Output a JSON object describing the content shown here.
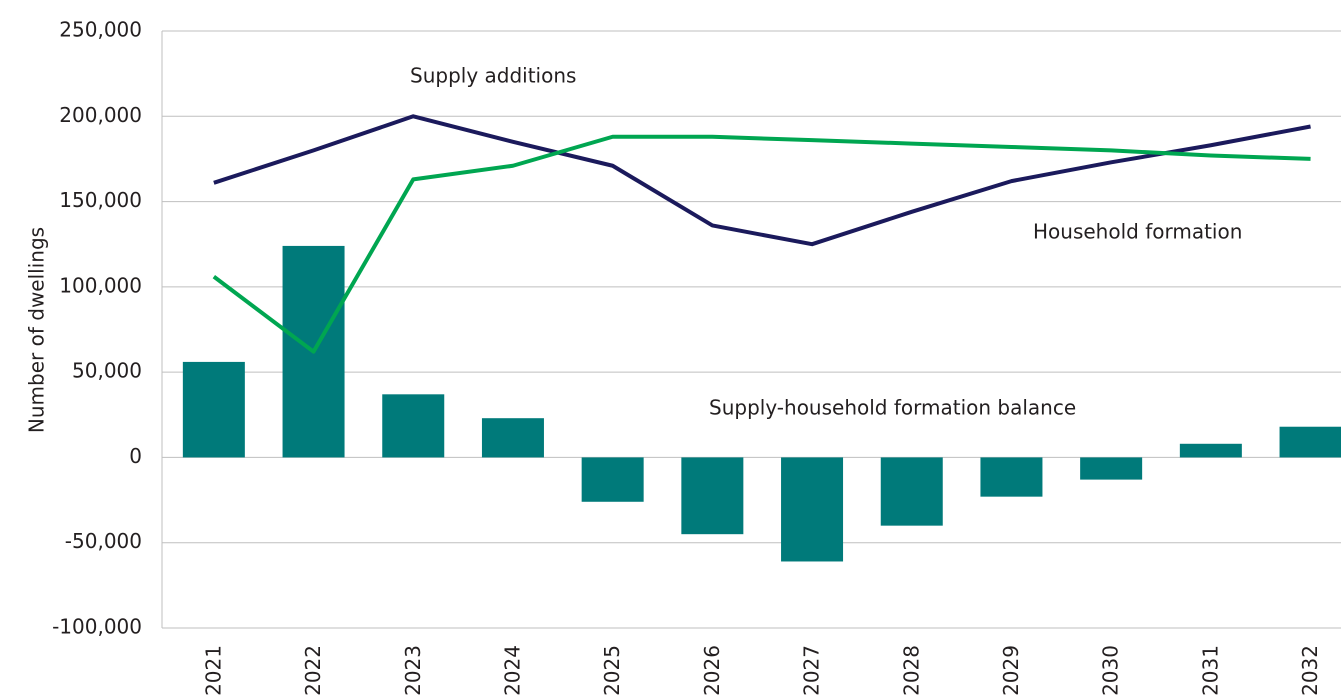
{
  "chart_data": {
    "type": "bar-line",
    "ylabel": "Number of dwellings",
    "categories": [
      "2021",
      "2022",
      "2023",
      "2024",
      "2025",
      "2026",
      "2027",
      "2028",
      "2029",
      "2030",
      "2031",
      "2032"
    ],
    "series": [
      {
        "name": "Supply-household formation balance",
        "type": "bar",
        "color": "#007a7a",
        "values": [
          56000,
          124000,
          37000,
          23000,
          -26000,
          -45000,
          -61000,
          -40000,
          -23000,
          -13000,
          8000,
          18000
        ]
      },
      {
        "name": "Supply additions",
        "type": "line",
        "color": "#1b1a5c",
        "values": [
          161000,
          180000,
          200000,
          185000,
          171000,
          136000,
          125000,
          144000,
          162000,
          173000,
          183000,
          194000
        ]
      },
      {
        "name": "Household formation",
        "type": "line",
        "color": "#00a651",
        "values": [
          106000,
          62000,
          163000,
          171000,
          188000,
          188000,
          186000,
          184000,
          182000,
          180000,
          177000,
          175000
        ]
      }
    ],
    "ylim": [
      -100000,
      250000
    ],
    "yticks": [
      {
        "value": -100000,
        "label": "-100,000"
      },
      {
        "value": -50000,
        "label": "-50,000"
      },
      0,
      {
        "value": 50000,
        "label": "50,000"
      },
      {
        "value": 100000,
        "label": "100,000"
      },
      {
        "value": 150000,
        "label": "150,000"
      },
      {
        "value": 200000,
        "label": "200,000"
      },
      {
        "value": 250000,
        "label": "250,000"
      }
    ],
    "grid": true
  }
}
